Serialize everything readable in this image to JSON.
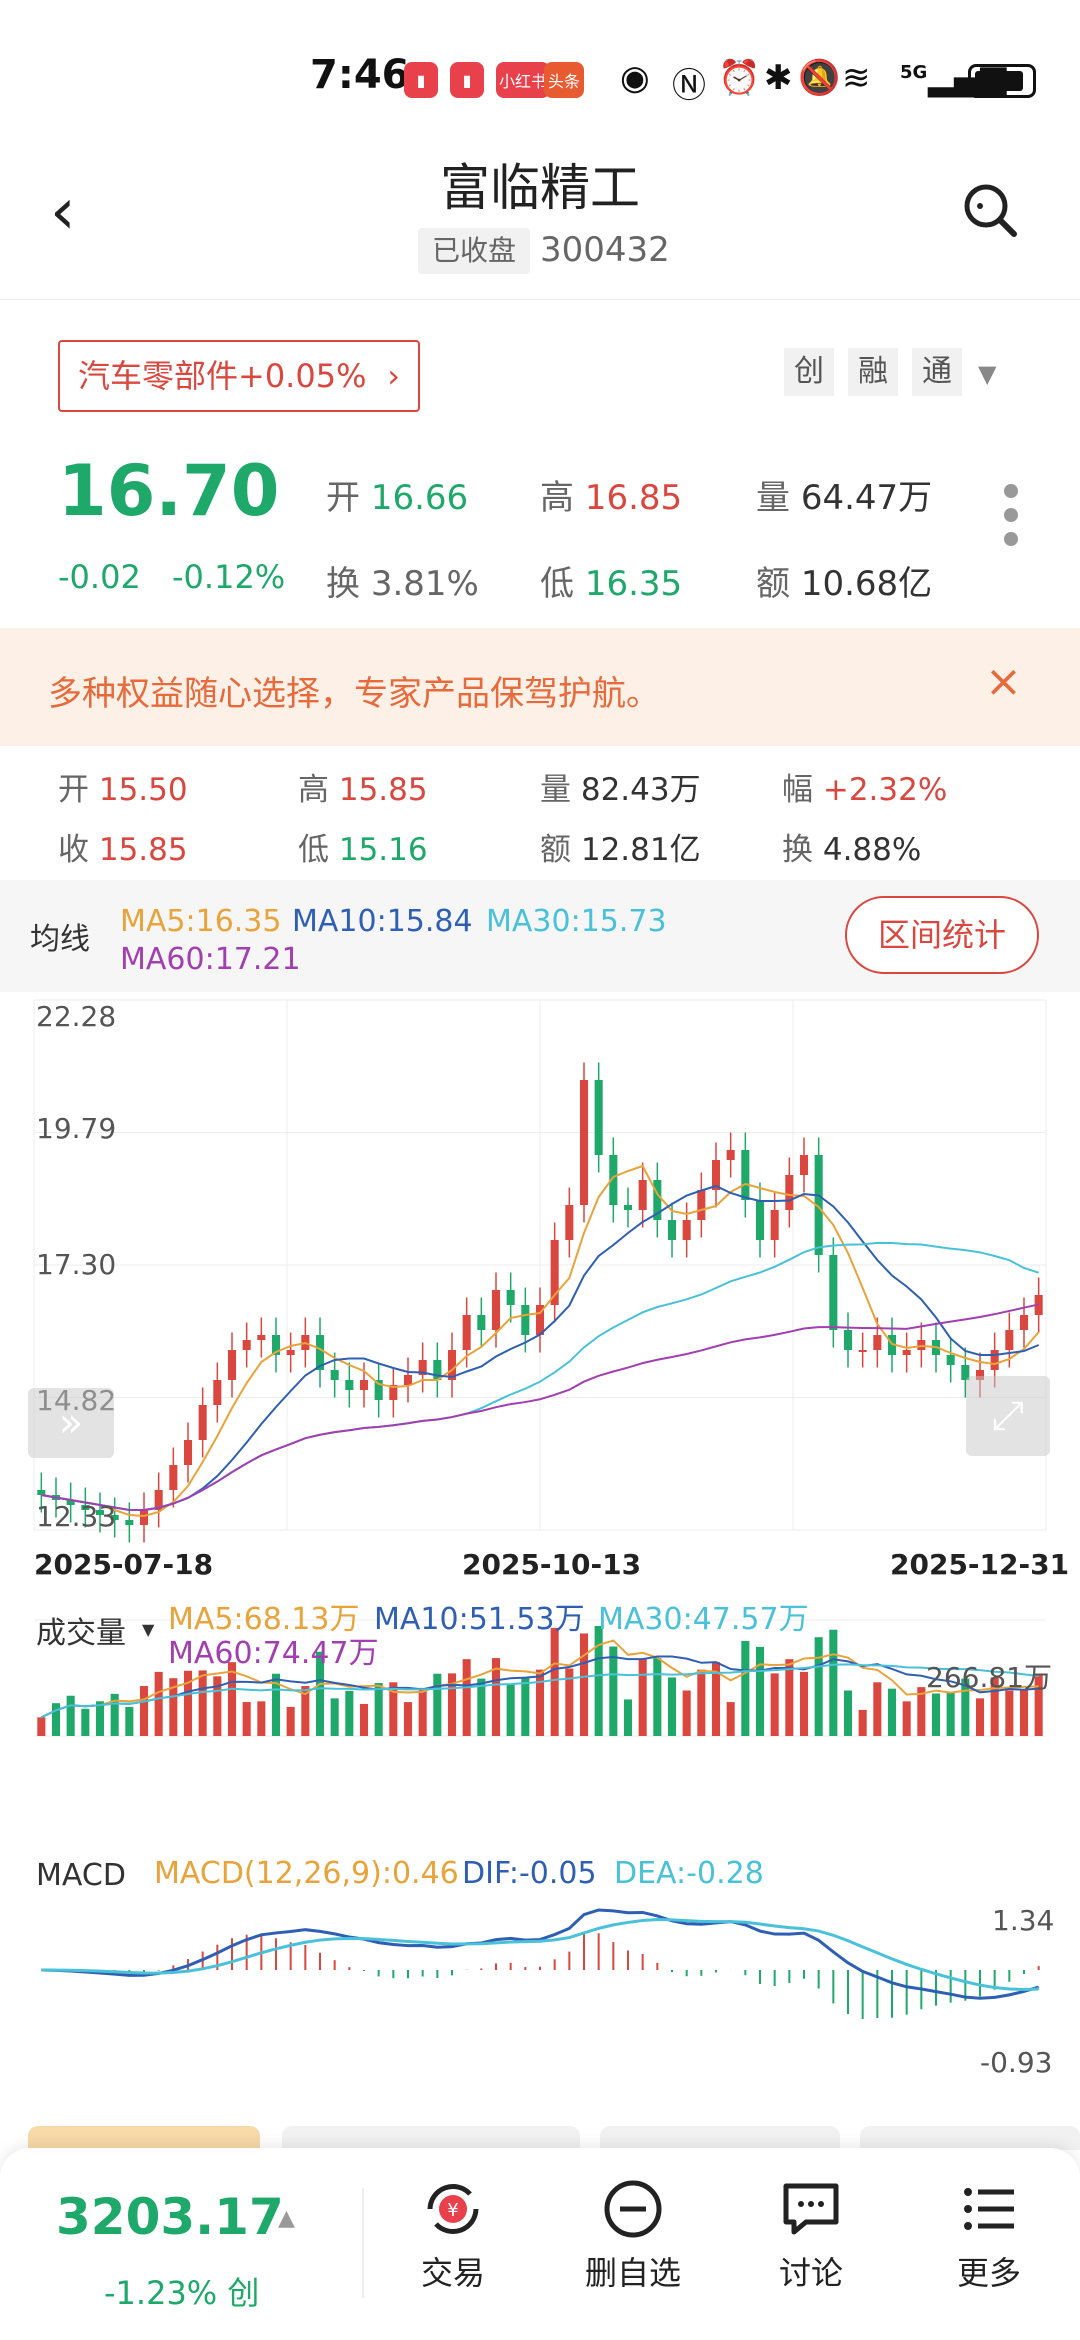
{
  "status_bar": {
    "time": "7:46",
    "badges": [
      "小红书",
      "头条"
    ],
    "network": "5G"
  },
  "header": {
    "title": "富临精工",
    "status": "已收盘",
    "code": "300432"
  },
  "sector": {
    "label": "汽车零部件+0.05%",
    "chips": [
      "创",
      "融",
      "通"
    ]
  },
  "quote": {
    "price": "16.70",
    "change": "-0.02",
    "change_pct": "-0.12%",
    "open_label": "开",
    "open": "16.66",
    "high_label": "高",
    "high": "16.85",
    "volume_label": "量",
    "volume": "64.47万",
    "turnover_label": "换",
    "turnover": "3.81%",
    "low_label": "低",
    "low": "16.35",
    "amount_label": "额",
    "amount": "10.68亿"
  },
  "banner": {
    "text": "多种权益随心选择，专家产品保驾护航。",
    "close": "×"
  },
  "day_detail": {
    "open_label": "开",
    "open": "15.50",
    "high_label": "高",
    "high": "15.85",
    "vol_label": "量",
    "vol": "82.43万",
    "amp_label": "幅",
    "amp": "+2.32%",
    "close_label": "收",
    "close": "15.85",
    "low_label": "低",
    "low": "15.16",
    "amt_label": "额",
    "amt": "12.81亿",
    "turn_label": "换",
    "turn": "4.88%"
  },
  "ma_bar": {
    "label": "均线",
    "ma5": "MA5:16.35",
    "ma10": "MA10:15.84",
    "ma30": "MA30:15.73",
    "ma60": "MA60:17.21",
    "range_button": "区间统计"
  },
  "colors": {
    "up": "#d9473f",
    "down": "#1ea86a",
    "ma5": "#e8a33a",
    "ma10": "#2f5fb3",
    "ma30": "#49c1d8",
    "ma60": "#a23fb0"
  },
  "chart_data": {
    "type": "candlestick",
    "y_ticks": [
      "22.28",
      "19.79",
      "17.30",
      "14.82",
      "12.33"
    ],
    "x_ticks": [
      "2025-07-18",
      "2025-10-13",
      "2025-12-31"
    ],
    "ylim": [
      12.33,
      22.28
    ],
    "close": [
      12.7,
      12.6,
      12.5,
      12.4,
      12.3,
      12.2,
      12.1,
      12.4,
      12.8,
      13.3,
      13.8,
      14.5,
      15.0,
      15.6,
      15.8,
      15.9,
      15.5,
      15.6,
      15.9,
      15.2,
      15.0,
      14.8,
      15.0,
      14.6,
      14.9,
      15.1,
      15.4,
      15.0,
      15.6,
      16.3,
      16.0,
      16.8,
      16.5,
      15.9,
      16.5,
      17.8,
      18.5,
      21.0,
      19.5,
      18.5,
      18.4,
      19.0,
      18.2,
      17.8,
      18.2,
      18.8,
      19.4,
      19.6,
      18.6,
      17.8,
      18.4,
      19.1,
      19.5,
      17.5,
      16.0,
      15.6,
      15.6,
      15.9,
      15.5,
      15.6,
      15.8,
      15.5,
      15.3,
      15.0,
      15.2,
      15.6,
      16.0,
      16.3,
      16.7
    ],
    "volume": {
      "label": "成交量",
      "ma5": "MA5:68.13万",
      "ma10": "MA10:51.53万",
      "ma30": "MA30:47.57万",
      "ma60": "MA60:74.47万",
      "max_tick": "266.81万"
    },
    "macd": {
      "label": "MACD",
      "params": "MACD(12,26,9):0.46",
      "dif": "DIF:-0.05",
      "dea": "DEA:-0.28",
      "max_tick": "1.34",
      "min_tick": "-0.93"
    }
  },
  "bottom": {
    "index": "3203.17",
    "index_chg": "-1.23%",
    "index_tag": "创",
    "buttons": [
      "交易",
      "删自选",
      "讨论",
      "更多"
    ]
  }
}
